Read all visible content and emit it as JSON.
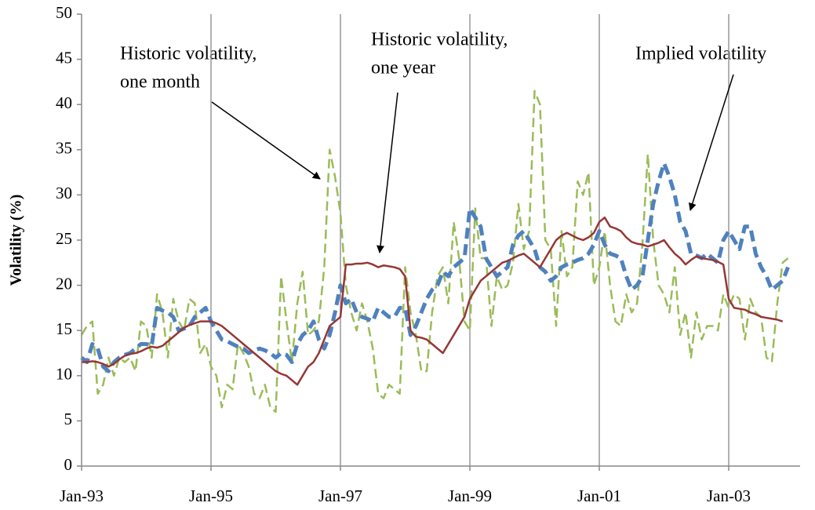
{
  "chart_data": {
    "type": "line",
    "y_label": "Volatility (%)",
    "annotations": [
      {
        "lines": [
          "Historic volatility,",
          "one month"
        ]
      },
      {
        "lines": [
          "Historic volatility,",
          "one year"
        ]
      },
      {
        "lines": [
          "Implied volatility"
        ]
      }
    ],
    "categories": [
      "Jan-93",
      null,
      null,
      null,
      null,
      null,
      null,
      null,
      null,
      null,
      null,
      null,
      null,
      null,
      null,
      null,
      null,
      null,
      null,
      null,
      null,
      null,
      null,
      null,
      "Jan-95",
      null,
      null,
      null,
      null,
      null,
      null,
      null,
      null,
      null,
      null,
      null,
      null,
      null,
      null,
      null,
      null,
      null,
      null,
      null,
      null,
      null,
      null,
      null,
      "Jan-97",
      null,
      null,
      null,
      null,
      null,
      null,
      null,
      null,
      null,
      null,
      null,
      null,
      null,
      null,
      null,
      null,
      null,
      null,
      null,
      null,
      null,
      null,
      null,
      "Jan-99",
      null,
      null,
      null,
      null,
      null,
      null,
      null,
      null,
      null,
      null,
      null,
      null,
      null,
      null,
      null,
      null,
      null,
      null,
      null,
      null,
      null,
      null,
      null,
      "Jan-01",
      null,
      null,
      null,
      null,
      null,
      null,
      null,
      null,
      null,
      null,
      null,
      null,
      null,
      null,
      null,
      null,
      null,
      null,
      null,
      null,
      null,
      null,
      null,
      "Jan-03",
      null,
      null,
      null,
      null,
      null,
      null,
      null,
      null,
      null,
      null,
      null
    ],
    "series": [
      {
        "color": "#9bbb59",
        "dash": "12,6",
        "width": 2.5,
        "values": [
          14.5,
          15.5,
          16,
          8,
          9,
          12,
          10,
          12,
          11.5,
          12,
          10.5,
          16,
          15.5,
          12,
          19,
          17,
          12,
          18.5,
          16,
          15,
          18.5,
          18,
          12.5,
          13.5,
          11,
          10,
          6.5,
          9,
          8.5,
          13.5,
          12.5,
          11,
          8,
          7.5,
          9,
          6.5,
          6,
          21,
          16,
          11.5,
          18,
          21.5,
          14.5,
          15,
          16,
          22,
          35,
          32,
          28,
          20,
          17,
          15,
          18,
          16,
          13,
          8,
          7.5,
          9,
          8.5,
          8,
          22,
          17,
          14.5,
          10.5,
          10.5,
          17,
          21,
          22,
          18,
          27,
          23,
          16,
          15,
          28.5,
          23,
          23,
          15.5,
          21,
          19.5,
          20,
          22.5,
          29,
          24,
          26,
          41.5,
          40,
          25,
          24,
          15.5,
          26,
          21,
          22,
          31.5,
          30,
          32.5,
          20,
          22,
          26,
          20,
          16,
          15.5,
          19,
          17,
          18,
          24.5,
          34.5,
          25,
          20,
          19,
          17,
          22,
          14.5,
          17,
          12,
          17,
          14,
          15.5,
          15.5,
          15,
          19,
          17.5,
          19,
          18.5,
          14,
          18.5,
          17,
          16.5,
          12,
          11.5,
          18,
          22.5,
          23
        ]
      },
      {
        "color": "#4f81bd",
        "dash": "14,7",
        "width": 5,
        "values": [
          12,
          11.5,
          13.5,
          13,
          11,
          10.5,
          11.5,
          12,
          12.3,
          12.5,
          13,
          13.5,
          13.5,
          13.3,
          17.5,
          17.2,
          17,
          16.5,
          15,
          15.2,
          15.5,
          16.5,
          17,
          17.5,
          16,
          15,
          14,
          13.8,
          13.5,
          13.2,
          13,
          12.5,
          12.8,
          13,
          12.8,
          12.5,
          12,
          12.5,
          12.3,
          11.5,
          13.5,
          14.5,
          15,
          16,
          14,
          13,
          14.5,
          17,
          20,
          18,
          18.5,
          17,
          16.5,
          16.3,
          16,
          17.5,
          17,
          16.5,
          16.5,
          17.5,
          17.5,
          14.5,
          15.5,
          17,
          18.5,
          19.5,
          20,
          21.5,
          21,
          22,
          22.5,
          23,
          28.5,
          27.5,
          26.5,
          23,
          22,
          21,
          21.5,
          22,
          24.5,
          25.5,
          26,
          25,
          24,
          22,
          21.5,
          20.5,
          21,
          22,
          22.3,
          22.5,
          22.8,
          23,
          23.5,
          24.5,
          26,
          24.5,
          23.5,
          23.3,
          23,
          21,
          19.5,
          20,
          21,
          25,
          29,
          31.5,
          33.5,
          32,
          30,
          27,
          26,
          23.5,
          23.3,
          23,
          23.5,
          23,
          22.5,
          25,
          26,
          25,
          24,
          26.5,
          26.5,
          23.5,
          22,
          21,
          19.5,
          20,
          20.5,
          22
        ]
      },
      {
        "color": "#953735",
        "dash": "none",
        "width": 2.5,
        "values": [
          11.5,
          11.5,
          11.6,
          11.5,
          11.3,
          11,
          11.3,
          11.8,
          12.2,
          12.4,
          12.5,
          12.7,
          13,
          13.2,
          13.1,
          13.3,
          13.8,
          14.3,
          14.8,
          15.3,
          15.6,
          15.8,
          16,
          16,
          16,
          15.8,
          15.5,
          15,
          14.5,
          14,
          13.5,
          13,
          12.5,
          12,
          11.5,
          11,
          10.5,
          10.2,
          10,
          9.5,
          9,
          10,
          11,
          11.5,
          12.5,
          14,
          15.5,
          16,
          16.5,
          22.3,
          22.3,
          22.4,
          22.4,
          22.5,
          22.3,
          22,
          22.2,
          22.1,
          22,
          21.8,
          21,
          15,
          14.3,
          14.2,
          14,
          13.5,
          13,
          12.5,
          13.5,
          14.5,
          15.5,
          16.5,
          18.5,
          19.5,
          20.5,
          21,
          21.5,
          22,
          22.5,
          22.7,
          23,
          23.3,
          23.5,
          23,
          22.5,
          22,
          23,
          24,
          25,
          25.5,
          25.8,
          25.5,
          25.2,
          25,
          25.3,
          25.8,
          27,
          27.5,
          26.5,
          26.3,
          26,
          25.3,
          24.8,
          24.6,
          24.5,
          24.3,
          24.5,
          24.7,
          25,
          24.2,
          23.5,
          23,
          22.3,
          22.8,
          23.2,
          23,
          22.9,
          22.8,
          22.6,
          22.3,
          18.5,
          17.5,
          17.4,
          17.3,
          17,
          16.8,
          16.5,
          16.4,
          16.3,
          16.2,
          16,
          null
        ]
      }
    ],
    "ylim": [
      0,
      50
    ],
    "yticks": [
      0,
      5,
      10,
      15,
      20,
      25,
      30,
      35,
      40,
      45,
      50
    ],
    "vgrid": true
  }
}
